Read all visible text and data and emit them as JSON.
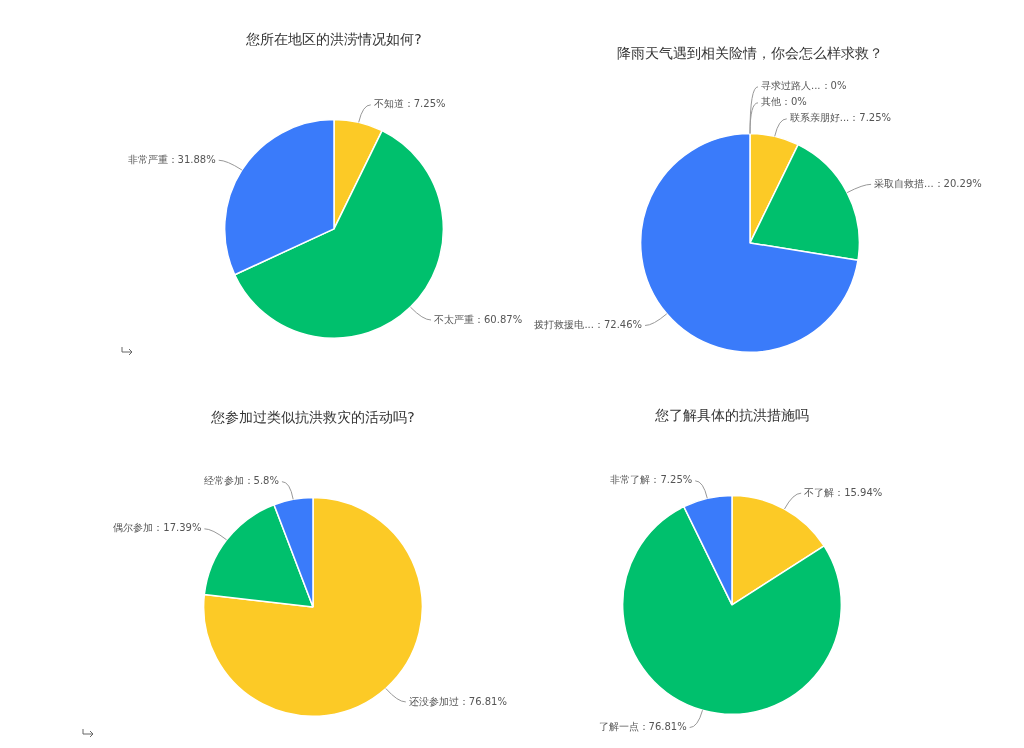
{
  "chart_data": [
    {
      "type": "pie",
      "title": "您所在地区的洪涝情况如何?",
      "categories": [
        "不知道",
        "不太严重",
        "非常严重"
      ],
      "values": [
        7.25,
        60.87,
        31.88
      ],
      "colors": [
        "#fcca26",
        "#00c06d",
        "#3a7bfa"
      ],
      "value_labels": [
        "：7.25%",
        "：60.87%",
        "：31.88%"
      ]
    },
    {
      "type": "pie",
      "title": "降雨天气遇到相关险情，你会怎么样求救？",
      "categories": [
        "寻求过路人...",
        "其他",
        "联系亲朋好...",
        "采取自救措...",
        "拨打救援电..."
      ],
      "values": [
        0,
        0,
        7.25,
        20.29,
        72.46
      ],
      "colors": [
        "#8b6cf0",
        "#f06a6a",
        "#fcca26",
        "#00c06d",
        "#3a7bfa"
      ],
      "value_labels": [
        "：0%",
        "：0%",
        "：7.25%",
        "：20.29%",
        "：72.46%"
      ]
    },
    {
      "type": "pie",
      "title": "您参加过类似抗洪救灾的活动吗?",
      "categories": [
        "还没参加过",
        "偶尔参加",
        "经常参加"
      ],
      "values": [
        76.81,
        17.39,
        5.8
      ],
      "colors": [
        "#fcca26",
        "#00c06d",
        "#3a7bfa"
      ],
      "value_labels": [
        "：76.81%",
        "：17.39%",
        "：5.8%"
      ]
    },
    {
      "type": "pie",
      "title": "您了解具体的抗洪措施吗",
      "categories": [
        "不了解",
        "了解一点",
        "非常了解"
      ],
      "values": [
        15.94,
        76.81,
        7.25
      ],
      "colors": [
        "#fcca26",
        "#00c06d",
        "#3a7bfa"
      ],
      "value_labels": [
        "：15.94%",
        "：76.81%",
        "：7.25%"
      ]
    }
  ]
}
